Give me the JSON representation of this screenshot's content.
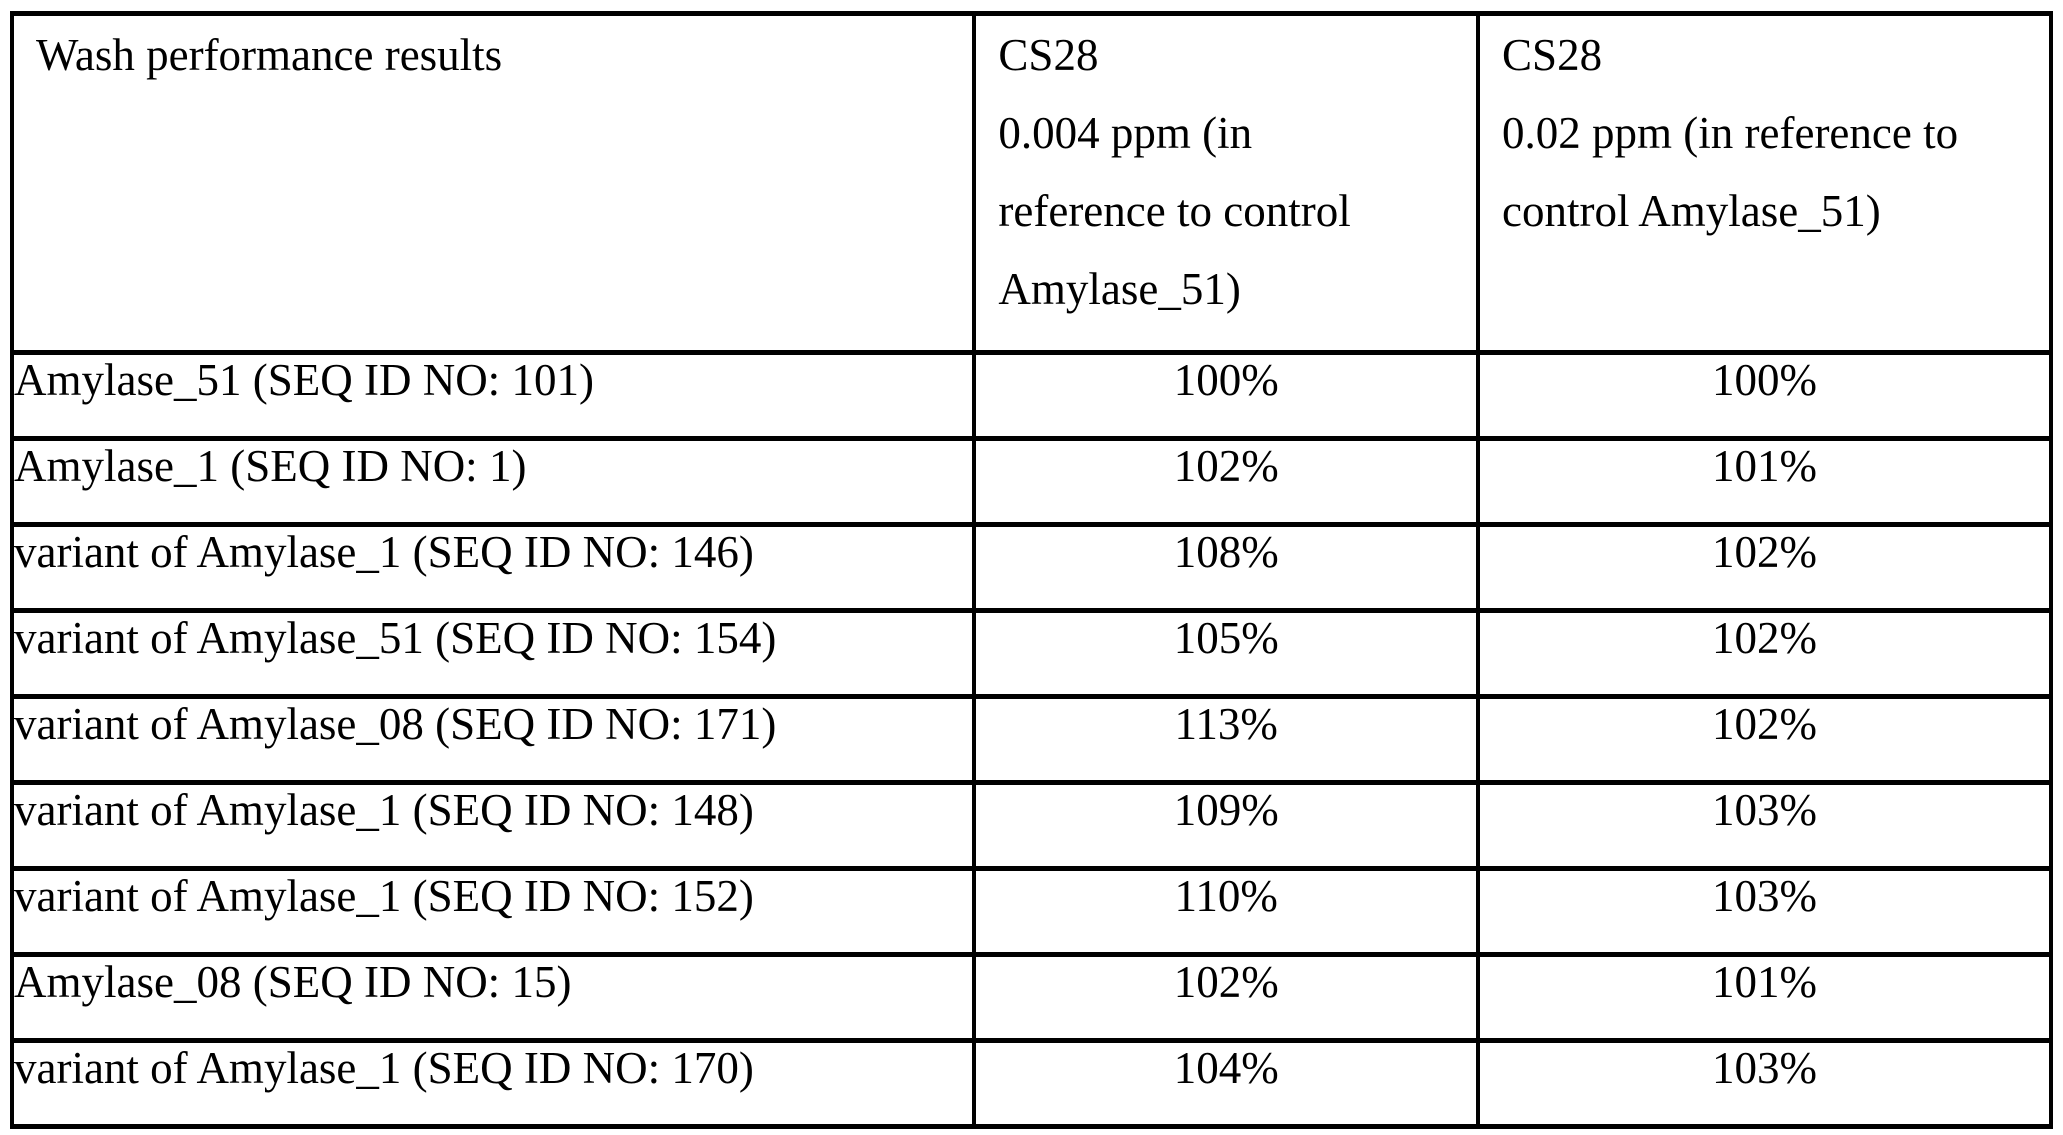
{
  "page": {
    "background": "#ffffff",
    "border_color": "#000000"
  },
  "table": {
    "header": {
      "col1": "Wash performance results",
      "col2_lines": [
        "CS28",
        "0.004 ppm (in",
        "reference to control",
        "Amylase_51)"
      ],
      "col3_lines": [
        "CS28",
        "0.02 ppm (in reference to",
        "control Amylase_51)"
      ]
    },
    "rows": [
      {
        "label": "Amylase_51 (SEQ ID NO: 101)",
        "cs28_0004ppm": "100%",
        "cs28_002ppm": "100%"
      },
      {
        "label": "Amylase_1 (SEQ ID NO: 1)",
        "cs28_0004ppm": "102%",
        "cs28_002ppm": "101%"
      },
      {
        "label": "variant of Amylase_1 (SEQ ID NO: 146)",
        "cs28_0004ppm": "108%",
        "cs28_002ppm": "102%"
      },
      {
        "label": "variant of Amylase_51 (SEQ ID NO: 154)",
        "cs28_0004ppm": "105%",
        "cs28_002ppm": "102%"
      },
      {
        "label": "variant of Amylase_08 (SEQ ID NO: 171)",
        "cs28_0004ppm": "113%",
        "cs28_002ppm": "102%"
      },
      {
        "label": "variant of Amylase_1 (SEQ ID NO: 148)",
        "cs28_0004ppm": "109%",
        "cs28_002ppm": "103%"
      },
      {
        "label": "variant of Amylase_1 (SEQ ID NO: 152)",
        "cs28_0004ppm": "110%",
        "cs28_002ppm": "103%"
      },
      {
        "label": "Amylase_08 (SEQ ID NO: 15)",
        "cs28_0004ppm": "102%",
        "cs28_002ppm": "101%"
      },
      {
        "label": "variant of Amylase_1 (SEQ ID NO: 170)",
        "cs28_0004ppm": "104%",
        "cs28_002ppm": "103%"
      }
    ]
  }
}
